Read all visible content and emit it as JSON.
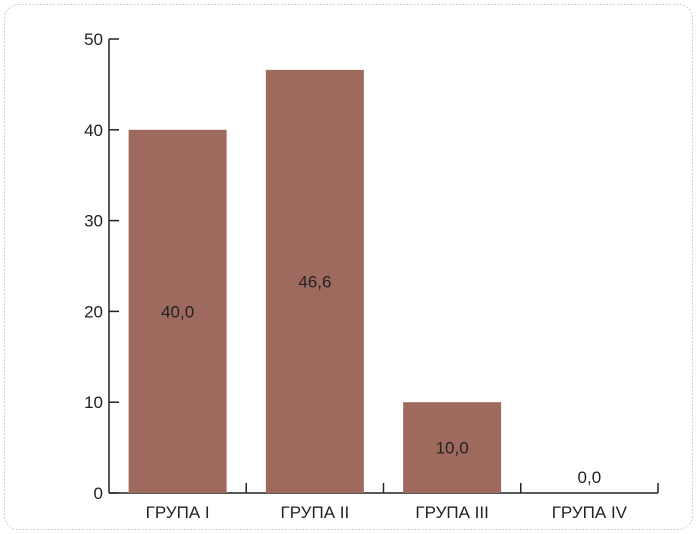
{
  "chart_data": {
    "type": "bar",
    "categories": [
      "ГРУПА I",
      "ГРУПА II",
      "ГРУПА III",
      "ГРУПА IV"
    ],
    "values": [
      40.0,
      46.6,
      10.0,
      0.0
    ],
    "data_labels": [
      "40,0",
      "46,6",
      "10,0",
      "0,0"
    ],
    "title": "",
    "xlabel": "",
    "ylabel": "",
    "ylim": [
      0,
      50
    ],
    "yticks": [
      0,
      10,
      20,
      30,
      40,
      50
    ],
    "grid": false,
    "legend": "none",
    "bar_color": "#9e6a5e",
    "axis_color": "#222222",
    "frame_color": "#bbbbbb"
  }
}
